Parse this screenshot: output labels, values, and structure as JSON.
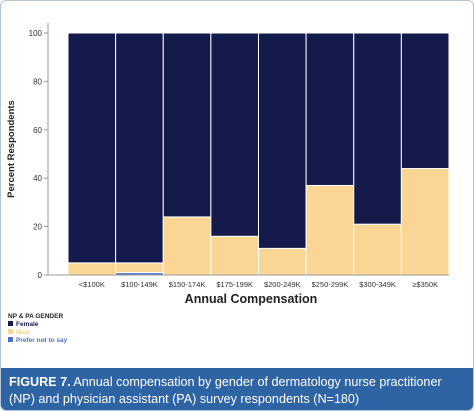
{
  "chart_data": {
    "type": "bar",
    "stacked": true,
    "categories": [
      "<$100K",
      "$100-149K",
      "$150-174K",
      "$175-199K",
      "$200-249K",
      "$250-299K",
      "$300-349K",
      "≥$350K"
    ],
    "series": [
      {
        "name": "Female",
        "color": "#141a4a",
        "values": [
          95,
          95,
          76,
          84,
          89,
          63,
          79,
          56
        ]
      },
      {
        "name": "Male",
        "color": "#fbd593",
        "values": [
          5,
          4,
          24,
          16,
          11,
          37,
          21,
          44
        ]
      },
      {
        "name": "Prefer not to say",
        "color": "#4a72c4",
        "values": [
          0,
          1,
          0,
          0,
          0,
          0,
          0,
          0
        ]
      }
    ],
    "stack_order": [
      "Prefer not to say",
      "Male",
      "Female"
    ],
    "xlabel": "Annual Compensation",
    "ylabel": "Percent Respondents",
    "ylim": [
      0,
      100
    ],
    "yticks": [
      0,
      20,
      40,
      60,
      80,
      100
    ],
    "grid": false,
    "legend": {
      "title": "NP & PA GENDER",
      "placement": "bottom-left",
      "entries": [
        {
          "label": "Female",
          "color": "#141a4a"
        },
        {
          "label": "Male",
          "color": "#fbd593"
        },
        {
          "label": "Prefer not to say",
          "color": "#4a72c4"
        }
      ]
    }
  },
  "caption": {
    "label": "FIGURE 7.",
    "text": " Annual compensation by gender of dermatology nurse practitioner (NP) and physician assistant (PA) survey respondents (N=180)"
  },
  "colors": {
    "caption_background": "#2f64a4",
    "frame_border": "#b7c3d6"
  }
}
